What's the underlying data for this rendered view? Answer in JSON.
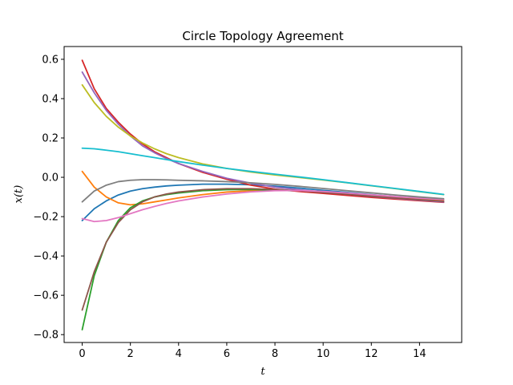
{
  "chart_data": {
    "type": "line",
    "title": "Circle Topology Agreement",
    "xlabel": "t",
    "ylabel": "x(t)",
    "xlim": [
      -0.75,
      15.75
    ],
    "ylim": [
      -0.84,
      0.665
    ],
    "xticks": [
      0,
      2,
      4,
      6,
      8,
      10,
      12,
      14
    ],
    "xtick_labels": [
      "0",
      "2",
      "4",
      "6",
      "8",
      "10",
      "12",
      "14"
    ],
    "yticks": [
      -0.8,
      -0.6,
      -0.4,
      -0.2,
      0.0,
      0.2,
      0.4,
      0.6
    ],
    "ytick_labels": [
      "−0.8",
      "−0.6",
      "−0.4",
      "−0.2",
      "0.0",
      "0.2",
      "0.4",
      "0.6"
    ],
    "grid": false,
    "x": [
      0,
      0.5,
      1,
      1.5,
      2,
      2.5,
      3,
      3.5,
      4,
      5,
      6,
      7,
      8,
      9,
      10,
      11,
      12,
      13,
      14,
      15
    ],
    "series": [
      {
        "color": "#1f77b4",
        "values": [
          -0.22,
          -0.16,
          -0.12,
          -0.09,
          -0.07,
          -0.058,
          -0.05,
          -0.044,
          -0.04,
          -0.035,
          -0.035,
          -0.038,
          -0.045,
          -0.055,
          -0.066,
          -0.077,
          -0.088,
          -0.099,
          -0.108,
          -0.115
        ]
      },
      {
        "color": "#ff7f0e",
        "values": [
          0.03,
          -0.05,
          -0.1,
          -0.13,
          -0.14,
          -0.135,
          -0.125,
          -0.115,
          -0.105,
          -0.088,
          -0.075,
          -0.068,
          -0.066,
          -0.068,
          -0.074,
          -0.082,
          -0.091,
          -0.1,
          -0.108,
          -0.115
        ]
      },
      {
        "color": "#2ca02c",
        "values": [
          -0.775,
          -0.5,
          -0.33,
          -0.22,
          -0.155,
          -0.12,
          -0.1,
          -0.088,
          -0.08,
          -0.068,
          -0.063,
          -0.062,
          -0.065,
          -0.07,
          -0.078,
          -0.087,
          -0.097,
          -0.107,
          -0.116,
          -0.125
        ]
      },
      {
        "color": "#d62728",
        "values": [
          0.595,
          0.45,
          0.35,
          0.28,
          0.22,
          0.17,
          0.13,
          0.1,
          0.07,
          0.025,
          -0.01,
          -0.04,
          -0.06,
          -0.072,
          -0.082,
          -0.092,
          -0.102,
          -0.111,
          -0.119,
          -0.127
        ]
      },
      {
        "color": "#9467bd",
        "values": [
          0.535,
          0.43,
          0.34,
          0.27,
          0.21,
          0.16,
          0.125,
          0.095,
          0.07,
          0.03,
          -0.005,
          -0.03,
          -0.05,
          -0.063,
          -0.075,
          -0.086,
          -0.097,
          -0.107,
          -0.116,
          -0.125
        ]
      },
      {
        "color": "#8c564b",
        "values": [
          -0.675,
          -0.48,
          -0.33,
          -0.23,
          -0.165,
          -0.125,
          -0.1,
          -0.085,
          -0.075,
          -0.063,
          -0.058,
          -0.058,
          -0.062,
          -0.068,
          -0.077,
          -0.086,
          -0.096,
          -0.105,
          -0.114,
          -0.122
        ]
      },
      {
        "color": "#e377c2",
        "values": [
          -0.21,
          -0.225,
          -0.22,
          -0.205,
          -0.185,
          -0.165,
          -0.148,
          -0.133,
          -0.12,
          -0.1,
          -0.085,
          -0.074,
          -0.068,
          -0.067,
          -0.072,
          -0.08,
          -0.089,
          -0.098,
          -0.106,
          -0.113
        ]
      },
      {
        "color": "#7f7f7f",
        "values": [
          -0.125,
          -0.07,
          -0.04,
          -0.022,
          -0.015,
          -0.012,
          -0.012,
          -0.013,
          -0.015,
          -0.018,
          -0.022,
          -0.028,
          -0.036,
          -0.046,
          -0.057,
          -0.068,
          -0.079,
          -0.09,
          -0.1,
          -0.109
        ]
      },
      {
        "color": "#bcbd22",
        "values": [
          0.47,
          0.38,
          0.31,
          0.255,
          0.21,
          0.175,
          0.145,
          0.12,
          0.1,
          0.068,
          0.045,
          0.027,
          0.012,
          -0.001,
          -0.014,
          -0.028,
          -0.043,
          -0.058,
          -0.073,
          -0.088
        ]
      },
      {
        "color": "#17becf",
        "values": [
          0.148,
          0.145,
          0.138,
          0.13,
          0.12,
          0.11,
          0.1,
          0.09,
          0.08,
          0.062,
          0.045,
          0.03,
          0.016,
          0.002,
          -0.012,
          -0.027,
          -0.042,
          -0.057,
          -0.072,
          -0.087
        ]
      }
    ]
  }
}
